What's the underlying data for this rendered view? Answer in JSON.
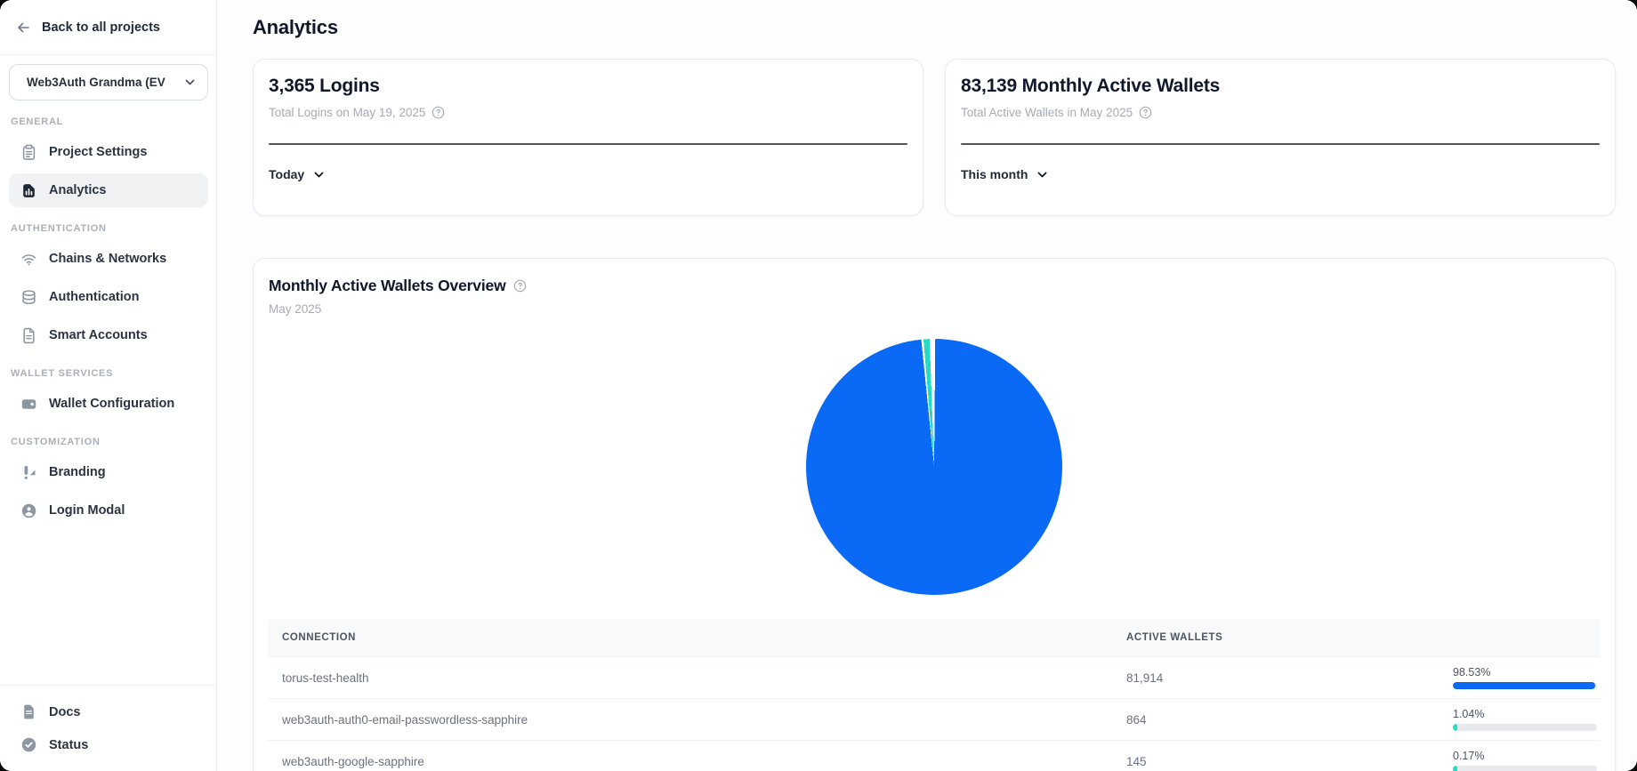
{
  "colors": {
    "primary_blue": "#0a69f5",
    "teal": "#26dbc3",
    "bar_track": "#e7e9ed",
    "active_item_bg": "#f1f2f4"
  },
  "sidebar": {
    "back_label": "Back to all projects",
    "project_selector": {
      "value": "Web3Auth Grandma (EV",
      "icon": "chevron-down-icon"
    },
    "sections": [
      {
        "label": "GENERAL",
        "items": [
          {
            "label": "Project Settings",
            "icon": "clipboard-icon",
            "active": false
          },
          {
            "label": "Analytics",
            "icon": "analytics-chart-icon",
            "active": true
          }
        ]
      },
      {
        "label": "AUTHENTICATION",
        "items": [
          {
            "label": "Chains & Networks",
            "icon": "wifi-icon",
            "active": false
          },
          {
            "label": "Authentication",
            "icon": "database-icon",
            "active": false
          },
          {
            "label": "Smart Accounts",
            "icon": "document-icon",
            "active": false
          }
        ]
      },
      {
        "label": "WALLET SERVICES",
        "items": [
          {
            "label": "Wallet Configuration",
            "icon": "wallet-icon",
            "active": false
          }
        ]
      },
      {
        "label": "CUSTOMIZATION",
        "items": [
          {
            "label": "Branding",
            "icon": "branding-icon",
            "active": false
          },
          {
            "label": "Login Modal",
            "icon": "user-circle-icon",
            "active": false
          }
        ]
      }
    ],
    "footer_items": [
      {
        "label": "Docs",
        "icon": "docs-icon"
      },
      {
        "label": "Status",
        "icon": "status-icon"
      }
    ]
  },
  "page": {
    "title": "Analytics"
  },
  "stat_cards": [
    {
      "headline": "3,365 Logins",
      "subtitle": "Total Logins on May 19, 2025",
      "range_label": "Today"
    },
    {
      "headline": "83,139 Monthly Active Wallets",
      "subtitle": "Total Active Wallets in May 2025",
      "range_label": "This month"
    }
  ],
  "chart_data": {
    "type": "pie",
    "title": "Monthly Active Wallets Overview",
    "subtitle": "May 2025",
    "legend_position": "none",
    "slices": [
      {
        "label": "torus-test-health",
        "value": 81914,
        "percent": 98.53,
        "color": "#0a69f5"
      },
      {
        "label": "web3auth-auth0-email-passwordless-sapphire",
        "value": 864,
        "percent": 1.04,
        "color": "#26dbc3"
      },
      {
        "label": "web3auth-google-sapphire",
        "value": 145,
        "percent": 0.17
      }
    ],
    "table": {
      "columns": [
        "CONNECTION",
        "ACTIVE WALLETS"
      ],
      "rows": [
        {
          "connection": "torus-test-health",
          "active_wallets": "81,914",
          "percent_label": "98.53%",
          "percent": 98.53,
          "bar_color": "#0a69f5"
        },
        {
          "connection": "web3auth-auth0-email-passwordless-sapphire",
          "active_wallets": "864",
          "percent_label": "1.04%",
          "percent": 1.04,
          "bar_color": "#26dbc3"
        },
        {
          "connection": "web3auth-google-sapphire",
          "active_wallets": "145",
          "percent_label": "0.17%",
          "percent": 0.17,
          "bar_color": "#26dbc3"
        }
      ]
    }
  }
}
